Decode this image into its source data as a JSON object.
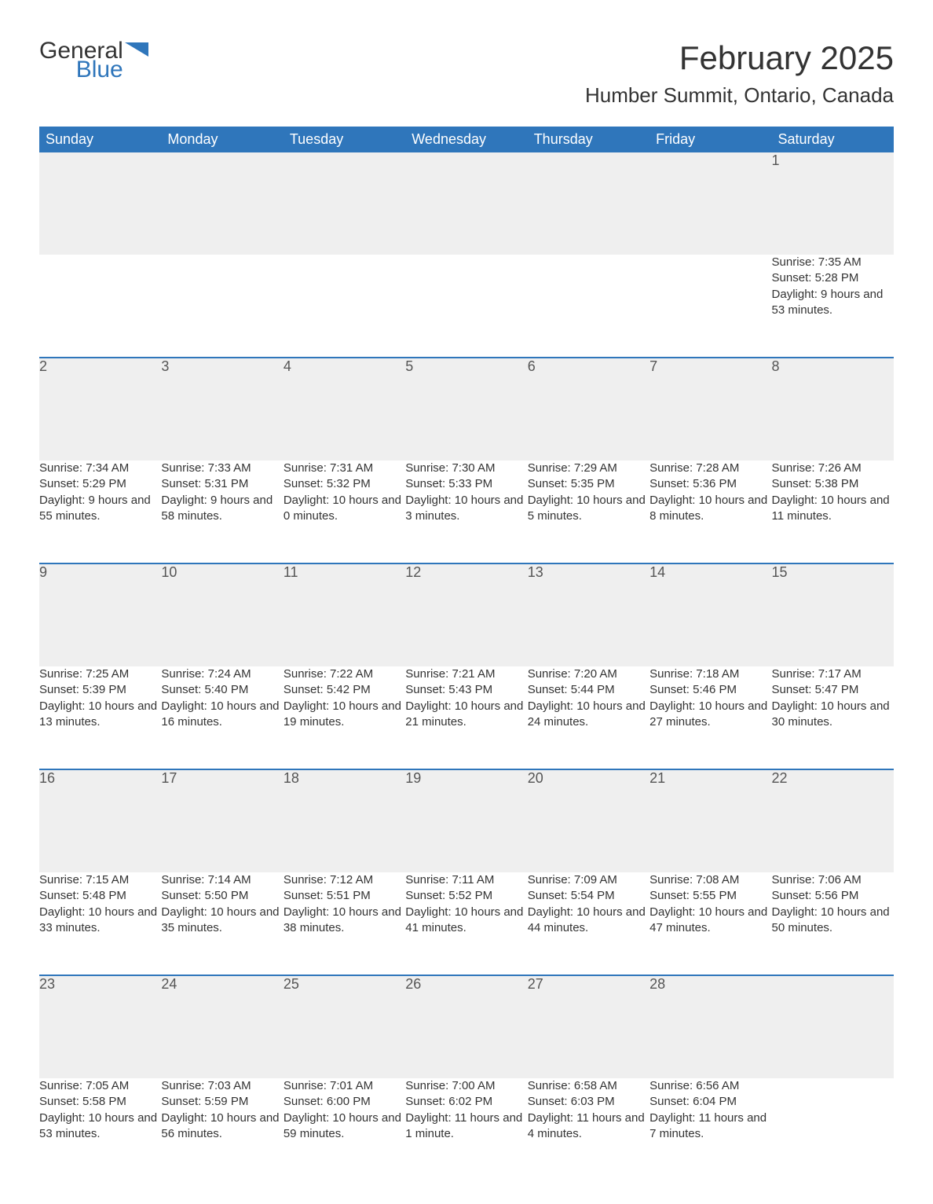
{
  "brand": {
    "name1": "General",
    "name2": "Blue",
    "accent_color": "#2f76bb"
  },
  "title": "February 2025",
  "subtitle": "Humber Summit, Ontario, Canada",
  "colors": {
    "header_bg": "#2f76bb",
    "header_text": "#ffffff",
    "daynum_bg": "#efefef",
    "row_border": "#2f76bb",
    "page_bg": "#ffffff",
    "text": "#333333"
  },
  "typography": {
    "title_fontsize": 42,
    "subtitle_fontsize": 26,
    "header_fontsize": 18,
    "daynum_fontsize": 18,
    "body_fontsize": 15
  },
  "layout": {
    "columns": 7,
    "week_rows": 5
  },
  "weekdays": [
    "Sunday",
    "Monday",
    "Tuesday",
    "Wednesday",
    "Thursday",
    "Friday",
    "Saturday"
  ],
  "weeks": [
    [
      null,
      null,
      null,
      null,
      null,
      null,
      {
        "day": "1",
        "sunrise": "Sunrise: 7:35 AM",
        "sunset": "Sunset: 5:28 PM",
        "daylight": "Daylight: 9 hours and 53 minutes."
      }
    ],
    [
      {
        "day": "2",
        "sunrise": "Sunrise: 7:34 AM",
        "sunset": "Sunset: 5:29 PM",
        "daylight": "Daylight: 9 hours and 55 minutes."
      },
      {
        "day": "3",
        "sunrise": "Sunrise: 7:33 AM",
        "sunset": "Sunset: 5:31 PM",
        "daylight": "Daylight: 9 hours and 58 minutes."
      },
      {
        "day": "4",
        "sunrise": "Sunrise: 7:31 AM",
        "sunset": "Sunset: 5:32 PM",
        "daylight": "Daylight: 10 hours and 0 minutes."
      },
      {
        "day": "5",
        "sunrise": "Sunrise: 7:30 AM",
        "sunset": "Sunset: 5:33 PM",
        "daylight": "Daylight: 10 hours and 3 minutes."
      },
      {
        "day": "6",
        "sunrise": "Sunrise: 7:29 AM",
        "sunset": "Sunset: 5:35 PM",
        "daylight": "Daylight: 10 hours and 5 minutes."
      },
      {
        "day": "7",
        "sunrise": "Sunrise: 7:28 AM",
        "sunset": "Sunset: 5:36 PM",
        "daylight": "Daylight: 10 hours and 8 minutes."
      },
      {
        "day": "8",
        "sunrise": "Sunrise: 7:26 AM",
        "sunset": "Sunset: 5:38 PM",
        "daylight": "Daylight: 10 hours and 11 minutes."
      }
    ],
    [
      {
        "day": "9",
        "sunrise": "Sunrise: 7:25 AM",
        "sunset": "Sunset: 5:39 PM",
        "daylight": "Daylight: 10 hours and 13 minutes."
      },
      {
        "day": "10",
        "sunrise": "Sunrise: 7:24 AM",
        "sunset": "Sunset: 5:40 PM",
        "daylight": "Daylight: 10 hours and 16 minutes."
      },
      {
        "day": "11",
        "sunrise": "Sunrise: 7:22 AM",
        "sunset": "Sunset: 5:42 PM",
        "daylight": "Daylight: 10 hours and 19 minutes."
      },
      {
        "day": "12",
        "sunrise": "Sunrise: 7:21 AM",
        "sunset": "Sunset: 5:43 PM",
        "daylight": "Daylight: 10 hours and 21 minutes."
      },
      {
        "day": "13",
        "sunrise": "Sunrise: 7:20 AM",
        "sunset": "Sunset: 5:44 PM",
        "daylight": "Daylight: 10 hours and 24 minutes."
      },
      {
        "day": "14",
        "sunrise": "Sunrise: 7:18 AM",
        "sunset": "Sunset: 5:46 PM",
        "daylight": "Daylight: 10 hours and 27 minutes."
      },
      {
        "day": "15",
        "sunrise": "Sunrise: 7:17 AM",
        "sunset": "Sunset: 5:47 PM",
        "daylight": "Daylight: 10 hours and 30 minutes."
      }
    ],
    [
      {
        "day": "16",
        "sunrise": "Sunrise: 7:15 AM",
        "sunset": "Sunset: 5:48 PM",
        "daylight": "Daylight: 10 hours and 33 minutes."
      },
      {
        "day": "17",
        "sunrise": "Sunrise: 7:14 AM",
        "sunset": "Sunset: 5:50 PM",
        "daylight": "Daylight: 10 hours and 35 minutes."
      },
      {
        "day": "18",
        "sunrise": "Sunrise: 7:12 AM",
        "sunset": "Sunset: 5:51 PM",
        "daylight": "Daylight: 10 hours and 38 minutes."
      },
      {
        "day": "19",
        "sunrise": "Sunrise: 7:11 AM",
        "sunset": "Sunset: 5:52 PM",
        "daylight": "Daylight: 10 hours and 41 minutes."
      },
      {
        "day": "20",
        "sunrise": "Sunrise: 7:09 AM",
        "sunset": "Sunset: 5:54 PM",
        "daylight": "Daylight: 10 hours and 44 minutes."
      },
      {
        "day": "21",
        "sunrise": "Sunrise: 7:08 AM",
        "sunset": "Sunset: 5:55 PM",
        "daylight": "Daylight: 10 hours and 47 minutes."
      },
      {
        "day": "22",
        "sunrise": "Sunrise: 7:06 AM",
        "sunset": "Sunset: 5:56 PM",
        "daylight": "Daylight: 10 hours and 50 minutes."
      }
    ],
    [
      {
        "day": "23",
        "sunrise": "Sunrise: 7:05 AM",
        "sunset": "Sunset: 5:58 PM",
        "daylight": "Daylight: 10 hours and 53 minutes."
      },
      {
        "day": "24",
        "sunrise": "Sunrise: 7:03 AM",
        "sunset": "Sunset: 5:59 PM",
        "daylight": "Daylight: 10 hours and 56 minutes."
      },
      {
        "day": "25",
        "sunrise": "Sunrise: 7:01 AM",
        "sunset": "Sunset: 6:00 PM",
        "daylight": "Daylight: 10 hours and 59 minutes."
      },
      {
        "day": "26",
        "sunrise": "Sunrise: 7:00 AM",
        "sunset": "Sunset: 6:02 PM",
        "daylight": "Daylight: 11 hours and 1 minute."
      },
      {
        "day": "27",
        "sunrise": "Sunrise: 6:58 AM",
        "sunset": "Sunset: 6:03 PM",
        "daylight": "Daylight: 11 hours and 4 minutes."
      },
      {
        "day": "28",
        "sunrise": "Sunrise: 6:56 AM",
        "sunset": "Sunset: 6:04 PM",
        "daylight": "Daylight: 11 hours and 7 minutes."
      },
      null
    ]
  ]
}
